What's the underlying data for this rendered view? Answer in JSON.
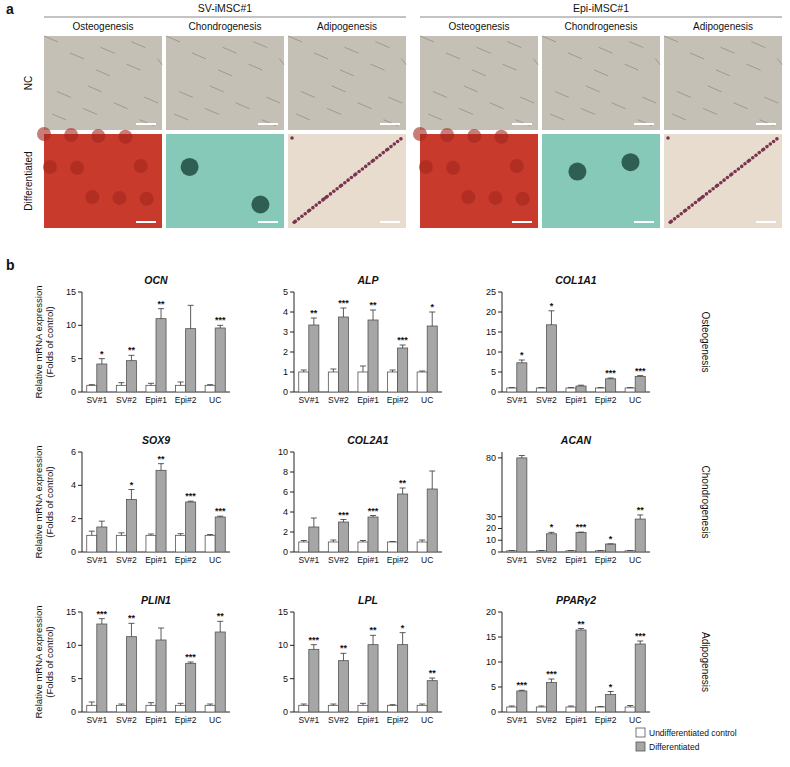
{
  "panel_a": {
    "label": "a",
    "rows": [
      "NC",
      "Differentiated"
    ],
    "groups": [
      {
        "title": "SV-iMSC#1",
        "columns": [
          "Osteogenesis",
          "Chondrogenesis",
          "Adipogenesis"
        ]
      },
      {
        "title": "Epi-iMSC#1",
        "columns": [
          "Osteogenesis",
          "Chondrogenesis",
          "Adipogenesis"
        ]
      }
    ]
  },
  "panel_b": {
    "label": "b",
    "rows": [
      "Osteogenesis",
      "Chondrogenesis",
      "Adipogenesis"
    ]
  },
  "chart_data": [
    {
      "type": "bar",
      "title": "OCN",
      "y_label": [
        "Relative mRNA expression",
        "(Folds of control)"
      ],
      "categories": [
        "SV#1",
        "SV#2",
        "Epi#1",
        "Epi#2",
        "UC"
      ],
      "ylim": [
        0,
        15
      ],
      "yticks": [
        0,
        5,
        10,
        15
      ],
      "grid": false,
      "series": [
        {
          "name": "Undifferentiated control",
          "color": "#ffffff",
          "values": [
            1,
            1,
            1,
            1,
            1
          ],
          "errors": [
            0.1,
            0.4,
            0.3,
            0.5,
            0.1
          ]
        },
        {
          "name": "Differentiated",
          "color": "#a6a6a6",
          "values": [
            4.2,
            4.7,
            11,
            9.5,
            9.6
          ],
          "errors": [
            0.8,
            0.8,
            1.5,
            3.5,
            0.4
          ]
        }
      ],
      "annotations": [
        "*",
        "**",
        "**",
        null,
        "***"
      ]
    },
    {
      "type": "bar",
      "title": "ALP",
      "categories": [
        "SV#1",
        "SV#2",
        "Epi#1",
        "Epi#2",
        "UC"
      ],
      "ylim": [
        0,
        5
      ],
      "yticks": [
        0,
        1,
        2,
        3,
        4,
        5
      ],
      "grid": false,
      "series": [
        {
          "name": "Undifferentiated control",
          "color": "#ffffff",
          "values": [
            1,
            1,
            1,
            1,
            1
          ],
          "errors": [
            0.1,
            0.15,
            0.3,
            0.1,
            0.05
          ]
        },
        {
          "name": "Differentiated",
          "color": "#a6a6a6",
          "values": [
            3.35,
            3.75,
            3.6,
            2.2,
            3.3
          ],
          "errors": [
            0.35,
            0.45,
            0.5,
            0.15,
            0.7
          ]
        }
      ],
      "annotations": [
        "**",
        "***",
        "**",
        "***",
        "*"
      ]
    },
    {
      "type": "bar",
      "title": "COL1A1",
      "categories": [
        "SV#1",
        "SV#2",
        "Epi#1",
        "Epi#2",
        "UC"
      ],
      "ylim": [
        0,
        25
      ],
      "yticks": [
        0,
        5,
        10,
        15,
        20,
        25
      ],
      "grid": false,
      "series": [
        {
          "name": "Undifferentiated control",
          "color": "#ffffff",
          "values": [
            1,
            1,
            1,
            1,
            1
          ],
          "errors": [
            0.1,
            0.1,
            0.1,
            0.1,
            0.1
          ]
        },
        {
          "name": "Differentiated",
          "color": "#a6a6a6",
          "values": [
            7.3,
            16.8,
            1.5,
            3.3,
            3.9
          ],
          "errors": [
            0.7,
            3.5,
            0.2,
            0.2,
            0.2
          ]
        }
      ],
      "annotations": [
        "*",
        "*",
        null,
        "***",
        "***"
      ]
    },
    {
      "type": "bar",
      "title": "SOX9",
      "y_label": [
        "Relative mRNA expression",
        "(Folds of control)"
      ],
      "categories": [
        "SV#1",
        "SV#2",
        "Epi#1",
        "Epi#2",
        "UC"
      ],
      "ylim": [
        0,
        6
      ],
      "yticks": [
        0,
        2,
        4,
        6
      ],
      "grid": false,
      "series": [
        {
          "name": "Undifferentiated control",
          "color": "#ffffff",
          "values": [
            1,
            1,
            1,
            1,
            1
          ],
          "errors": [
            0.25,
            0.15,
            0.08,
            0.1,
            0.05
          ]
        },
        {
          "name": "Differentiated",
          "color": "#a6a6a6",
          "values": [
            1.5,
            3.15,
            4.9,
            3.0,
            2.1
          ],
          "errors": [
            0.35,
            0.6,
            0.4,
            0.05,
            0.05
          ]
        }
      ],
      "annotations": [
        null,
        "*",
        "**",
        "***",
        "***"
      ]
    },
    {
      "type": "bar",
      "title": "COL2A1",
      "categories": [
        "SV#1",
        "SV#2",
        "Epi#1",
        "Epi#2",
        "UC"
      ],
      "ylim": [
        0,
        10
      ],
      "yticks": [
        0,
        2,
        4,
        6,
        8,
        10
      ],
      "grid": false,
      "series": [
        {
          "name": "Undifferentiated control",
          "color": "#ffffff",
          "values": [
            1,
            1,
            1,
            1,
            1
          ],
          "errors": [
            0.15,
            0.2,
            0.15,
            0.05,
            0.2
          ]
        },
        {
          "name": "Differentiated",
          "color": "#a6a6a6",
          "values": [
            2.5,
            3.0,
            3.5,
            5.8,
            6.3
          ],
          "errors": [
            0.9,
            0.25,
            0.15,
            0.6,
            1.8
          ]
        }
      ],
      "annotations": [
        null,
        "***",
        "***",
        "**",
        null
      ]
    },
    {
      "type": "bar",
      "title": "ACAN",
      "categories": [
        "SV#1",
        "SV#2",
        "Epi#1",
        "Epi#2",
        "UC"
      ],
      "ylim": [
        0,
        85
      ],
      "yticks": [
        0,
        10,
        20,
        30,
        80
      ],
      "grid": false,
      "series": [
        {
          "name": "Undifferentiated control",
          "color": "#ffffff",
          "values": [
            1,
            1,
            1,
            1,
            1
          ],
          "errors": [
            0.2,
            0.2,
            0.2,
            0.2,
            0.2
          ]
        },
        {
          "name": "Differentiated",
          "color": "#a6a6a6",
          "values": [
            80,
            15.5,
            16.5,
            6.8,
            28
          ],
          "errors": [
            2,
            1.2,
            0.4,
            0.1,
            3.5
          ]
        }
      ],
      "annotations": [
        null,
        "*",
        "***",
        "*",
        "**"
      ]
    },
    {
      "type": "bar",
      "title": "PLIN1",
      "y_label": [
        "Relative mRNA expression",
        "(Folds of control)"
      ],
      "categories": [
        "SV#1",
        "SV#2",
        "Epi#1",
        "Epi#2",
        "UC"
      ],
      "ylim": [
        0,
        15
      ],
      "yticks": [
        0,
        5,
        10,
        15
      ],
      "grid": false,
      "series": [
        {
          "name": "Undifferentiated control",
          "color": "#ffffff",
          "values": [
            1,
            1,
            1,
            1,
            1
          ],
          "errors": [
            0.5,
            0.2,
            0.4,
            0.3,
            0.2
          ]
        },
        {
          "name": "Differentiated",
          "color": "#a6a6a6",
          "values": [
            13.2,
            11.3,
            10.8,
            7.3,
            12
          ],
          "errors": [
            0.8,
            2,
            1.8,
            0.2,
            1.6
          ]
        }
      ],
      "annotations": [
        "***",
        "**",
        null,
        "***",
        "**"
      ]
    },
    {
      "type": "bar",
      "title": "LPL",
      "categories": [
        "SV#1",
        "SV#2",
        "Epi#1",
        "Epi#2",
        "UC"
      ],
      "ylim": [
        0,
        15
      ],
      "yticks": [
        0,
        5,
        10,
        15
      ],
      "grid": false,
      "series": [
        {
          "name": "Undifferentiated control",
          "color": "#ffffff",
          "values": [
            1,
            1,
            1,
            1,
            1
          ],
          "errors": [
            0.2,
            0.2,
            0.3,
            0.1,
            0.2
          ]
        },
        {
          "name": "Differentiated",
          "color": "#a6a6a6",
          "values": [
            9.4,
            7.7,
            10.1,
            10.1,
            4.7
          ],
          "errors": [
            0.7,
            1.1,
            1.4,
            1.8,
            0.4
          ]
        }
      ],
      "annotations": [
        "***",
        "**",
        "**",
        "*",
        "**"
      ]
    },
    {
      "type": "bar",
      "title": "PPARγ2",
      "categories": [
        "SV#1",
        "SV#2",
        "Epi#1",
        "Epi#2",
        "UC"
      ],
      "ylim": [
        0,
        20
      ],
      "yticks": [
        0,
        5,
        10,
        15,
        20
      ],
      "grid": false,
      "legend": "lower right",
      "series": [
        {
          "name": "Undifferentiated control",
          "color": "#ffffff",
          "values": [
            1,
            1,
            1,
            1,
            1
          ],
          "errors": [
            0.2,
            0.2,
            0.2,
            0.1,
            0.3
          ]
        },
        {
          "name": "Differentiated",
          "color": "#a6a6a6",
          "values": [
            4.2,
            5.9,
            16.4,
            3.5,
            13.6
          ],
          "errors": [
            0.15,
            0.7,
            0.3,
            0.6,
            0.6
          ]
        }
      ],
      "annotations": [
        "***",
        "***",
        "**",
        "*",
        "***"
      ]
    }
  ]
}
